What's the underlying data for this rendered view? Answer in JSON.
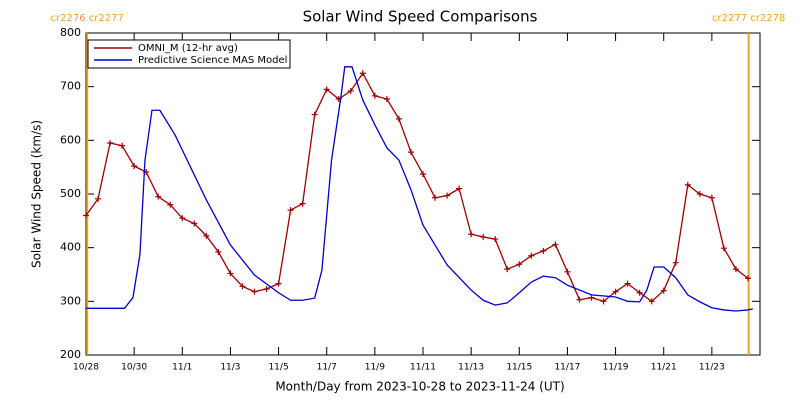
{
  "chart_data": {
    "type": "line",
    "title": "Solar Wind Speed Comparisons",
    "x_label": "Month/Day from 2023-10-28 to 2023-11-24 (UT)",
    "y_label": "Solar Wind Speed (km/s)",
    "xlim": [
      0,
      28
    ],
    "ylim": [
      200,
      800
    ],
    "yticks": [
      200,
      300,
      400,
      500,
      600,
      700,
      800
    ],
    "xticks": [
      {
        "value": 0,
        "label": "10/28"
      },
      {
        "value": 2,
        "label": "10/30"
      },
      {
        "value": 4,
        "label": "11/1"
      },
      {
        "value": 6,
        "label": "11/3"
      },
      {
        "value": 8,
        "label": "11/5"
      },
      {
        "value": 10,
        "label": "11/7"
      },
      {
        "value": 12,
        "label": "11/9"
      },
      {
        "value": 14,
        "label": "11/11"
      },
      {
        "value": 16,
        "label": "11/13"
      },
      {
        "value": 18,
        "label": "11/15"
      },
      {
        "value": 20,
        "label": "11/17"
      },
      {
        "value": 22,
        "label": "11/19"
      },
      {
        "value": 24,
        "label": "11/21"
      },
      {
        "value": 26,
        "label": "11/23"
      }
    ],
    "legend": "upper left",
    "annotations": [
      {
        "x": 0.05,
        "label": "cr2276 cr2277",
        "color": "#f0a030"
      },
      {
        "x": 27.53,
        "label": "cr2277 cr2278",
        "color": "#f0a030"
      }
    ],
    "series": [
      {
        "name": "OMNI_M (12-hr avg)",
        "color": "#a00000",
        "markers": true,
        "x": [
          0,
          0.5,
          1,
          1.5,
          2,
          2.5,
          3,
          3.5,
          4,
          4.5,
          5,
          5.5,
          6,
          6.5,
          7,
          7.5,
          8,
          8.5,
          9,
          9.5,
          10,
          10.5,
          11,
          11.5,
          12,
          12.5,
          13,
          13.5,
          14,
          14.5,
          15,
          15.5,
          16,
          16.5,
          17,
          17.5,
          18,
          18.5,
          19,
          19.5,
          20,
          20.5,
          21,
          21.5,
          22,
          22.5,
          23,
          23.5,
          24,
          24.5,
          25,
          25.5,
          26,
          26.5,
          27,
          27.5
        ],
        "values": [
          460,
          491,
          595,
          590,
          552,
          541,
          495,
          480,
          455,
          445,
          422,
          392,
          352,
          328,
          318,
          323,
          333,
          470,
          482,
          648,
          695,
          677,
          692,
          725,
          683,
          677,
          640,
          578,
          537,
          493,
          497,
          510,
          425,
          420,
          416,
          360,
          369,
          385,
          394,
          406,
          355,
          303,
          307,
          300,
          318,
          333,
          316,
          300,
          320,
          372,
          517,
          500,
          493,
          399,
          360,
          343
        ]
      },
      {
        "name": "Predictive Science MAS Model",
        "color": "#0000cc",
        "markers": false,
        "x": [
          0,
          0.5,
          1,
          1.6,
          1.95,
          2.24,
          2.45,
          2.74,
          3.07,
          3.7,
          4,
          5,
          6,
          7,
          8,
          8.5,
          9,
          9.5,
          9.8,
          10.2,
          10.6,
          10.75,
          11.05,
          11.5,
          12,
          12.5,
          13,
          13.5,
          14,
          15,
          16,
          16.5,
          17,
          17.5,
          18,
          18.5,
          19,
          19.5,
          20,
          21,
          22,
          22.5,
          23,
          23.3,
          23.6,
          24,
          24.5,
          25,
          25.5,
          26,
          26.5,
          27,
          27.5,
          27.7
        ],
        "values": [
          287,
          287,
          287,
          287,
          307,
          387,
          563,
          656,
          656,
          610,
          582,
          489,
          405,
          349,
          316,
          302,
          302,
          306,
          358,
          563,
          684,
          737,
          737,
          675,
          629,
          586,
          563,
          508,
          442,
          368,
          321,
          302,
          293,
          297,
          316,
          336,
          347,
          344,
          330,
          312,
          308,
          300,
          299,
          321,
          364,
          364,
          344,
          312,
          299,
          288,
          284,
          282,
          284,
          286
        ]
      }
    ]
  }
}
